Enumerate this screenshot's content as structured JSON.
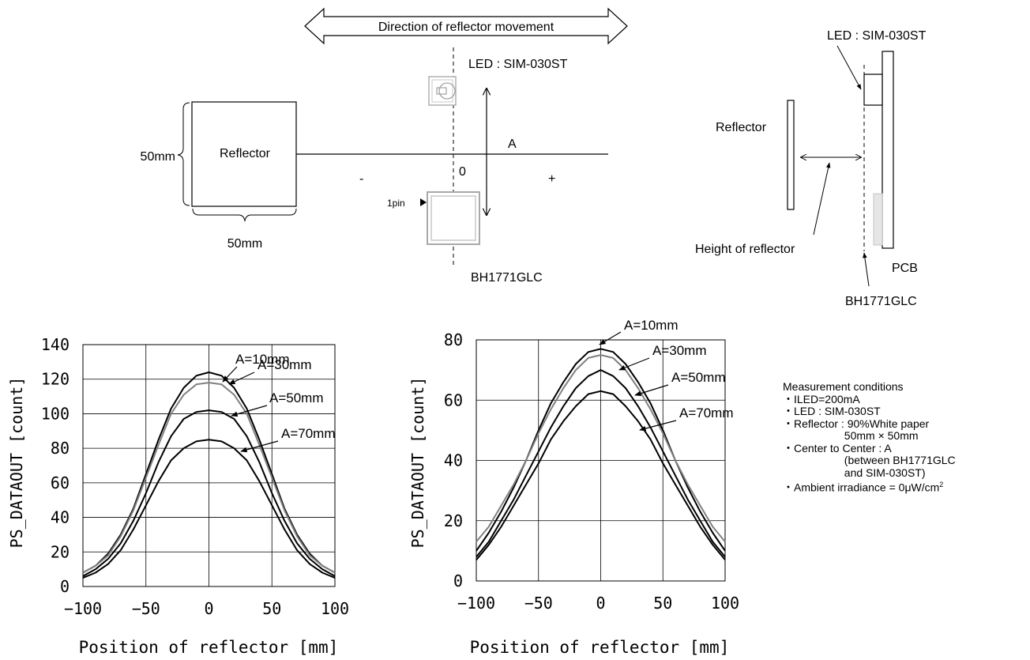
{
  "diagram_left": {
    "direction_label": "Direction of reflector movement",
    "led_label": "LED : SIM-030ST",
    "reflector_label": "Reflector",
    "height_dim": "50mm",
    "width_dim": "50mm",
    "axis_label": "A",
    "minus": "-",
    "zero": "0",
    "plus": "+",
    "pin_label": "1pin",
    "sensor_label": "BH1771GLC"
  },
  "diagram_right": {
    "led_label": "LED : SIM-030ST",
    "reflector_label": "Reflector",
    "height_label": "Height of reflector",
    "pcb_label": "PCB",
    "sensor_label": "BH1771GLC"
  },
  "conditions": {
    "title": "Measurement conditions",
    "lines": [
      "・ILED=200mA",
      "・LED : SIM-030ST",
      "・Reflector : 90%White paper",
      "                    50mm × 50mm",
      "・Center to Center : A",
      "                    (between BH1771GLC",
      "                    and SIM-030ST)"
    ],
    "ambient_prefix": "・Ambient irradiance = 0μW/cm",
    "ambient_sup": "2"
  },
  "chart_data": [
    {
      "type": "line",
      "xlabel": "Position of reflector [mm]",
      "ylabel": "PS_DATAOUT [count]",
      "xlim": [
        -100,
        100
      ],
      "ylim": [
        0,
        140
      ],
      "xticks": [
        "−100",
        "−50",
        "0",
        "50",
        "100"
      ],
      "yticks": [
        "0",
        "20",
        "40",
        "60",
        "80",
        "100",
        "120",
        "140"
      ],
      "grid": true,
      "x": [
        -100,
        -90,
        -80,
        -70,
        -60,
        -50,
        -40,
        -30,
        -20,
        -10,
        0,
        10,
        20,
        30,
        40,
        50,
        60,
        70,
        80,
        90,
        100
      ],
      "series": [
        {
          "name": "A=10mm",
          "color": "#000000",
          "values": [
            8,
            12,
            19,
            30,
            45,
            65,
            85,
            103,
            115,
            122,
            124,
            122,
            115,
            103,
            85,
            65,
            45,
            30,
            19,
            12,
            8
          ]
        },
        {
          "name": "A=30mm",
          "color": "#808080",
          "values": [
            8,
            12,
            18,
            29,
            44,
            63,
            82,
            100,
            111,
            117,
            118,
            117,
            111,
            100,
            82,
            63,
            44,
            29,
            18,
            12,
            8
          ]
        },
        {
          "name": "A=50mm",
          "color": "#000000",
          "values": [
            6,
            10,
            16,
            25,
            38,
            54,
            72,
            87,
            97,
            101,
            102,
            101,
            97,
            87,
            72,
            54,
            38,
            25,
            16,
            10,
            6
          ]
        },
        {
          "name": "A=70mm",
          "color": "#000000",
          "values": [
            5,
            8,
            13,
            21,
            33,
            47,
            61,
            73,
            80,
            84,
            85,
            84,
            80,
            73,
            61,
            47,
            33,
            21,
            13,
            8,
            5
          ]
        }
      ]
    },
    {
      "type": "line",
      "xlabel": "Position of reflector [mm]",
      "ylabel": "PS_DATAOUT [count]",
      "xlim": [
        -100,
        100
      ],
      "ylim": [
        0,
        80
      ],
      "xticks": [
        "−100",
        "−50",
        "0",
        "50",
        "100"
      ],
      "yticks": [
        "0",
        "20",
        "40",
        "60",
        "80"
      ],
      "grid": true,
      "x": [
        -100,
        -90,
        -80,
        -70,
        -60,
        -50,
        -40,
        -30,
        -20,
        -10,
        0,
        10,
        20,
        30,
        40,
        50,
        60,
        70,
        80,
        90,
        100
      ],
      "series": [
        {
          "name": "A=10mm",
          "color": "#000000",
          "values": [
            10,
            16,
            23,
            31,
            40,
            50,
            59,
            66,
            72,
            76,
            77,
            76,
            72,
            66,
            59,
            50,
            40,
            31,
            23,
            16,
            10
          ]
        },
        {
          "name": "A=30mm",
          "color": "#808080",
          "values": [
            13,
            18,
            25,
            32,
            40,
            49,
            57,
            64,
            70,
            74,
            75,
            74,
            70,
            64,
            57,
            49,
            40,
            32,
            25,
            18,
            13
          ]
        },
        {
          "name": "A=50mm",
          "color": "#000000",
          "values": [
            8,
            13,
            20,
            27,
            35,
            43,
            51,
            58,
            64,
            68,
            70,
            68,
            64,
            58,
            51,
            43,
            35,
            27,
            20,
            13,
            8
          ]
        },
        {
          "name": "A=70mm",
          "color": "#000000",
          "values": [
            7,
            12,
            18,
            25,
            32,
            39,
            47,
            53,
            58,
            62,
            63,
            62,
            58,
            53,
            47,
            39,
            32,
            25,
            18,
            12,
            7
          ]
        }
      ]
    }
  ]
}
